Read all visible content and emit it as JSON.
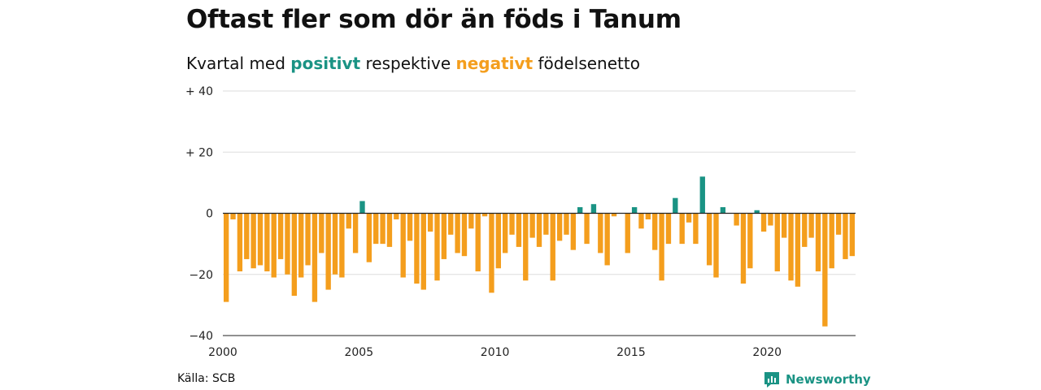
{
  "header": {
    "title": "Oftast fler som dör än föds i Tanum",
    "subtitle_pre": "Kvartal med",
    "subtitle_pos": "positivt",
    "subtitle_mid": "respektive",
    "subtitle_neg": "negativt",
    "subtitle_post": "födelsenetto"
  },
  "footer": {
    "source": "Källa: SCB",
    "brand": "Newsworthy",
    "brand_icon": "newsworthy-logo-icon"
  },
  "colors": {
    "positive": "#1a9384",
    "negative": "#f49e1d",
    "grid": "#dddddd",
    "zero_line": "#222222"
  },
  "chart_data": {
    "type": "bar",
    "title": "",
    "xlabel": "",
    "ylabel": "",
    "ylim": [
      -40,
      40
    ],
    "yticks": [
      40,
      20,
      0,
      -20,
      -40
    ],
    "ytick_labels": [
      "+ 40",
      "+ 20",
      "0",
      "−20",
      "−40"
    ],
    "xlim": [
      2000,
      2023.25
    ],
    "xticks": [
      2000,
      2005,
      2010,
      2015,
      2020
    ],
    "xtick_labels": [
      "2000",
      "2005",
      "2010",
      "2015",
      "2020"
    ],
    "grid": true,
    "quarter_start": "2000 Q1",
    "categories": [
      "2000 Q1",
      "2000 Q2",
      "2000 Q3",
      "2000 Q4",
      "2001 Q1",
      "2001 Q2",
      "2001 Q3",
      "2001 Q4",
      "2002 Q1",
      "2002 Q2",
      "2002 Q3",
      "2002 Q4",
      "2003 Q1",
      "2003 Q2",
      "2003 Q3",
      "2003 Q4",
      "2004 Q1",
      "2004 Q2",
      "2004 Q3",
      "2004 Q4",
      "2005 Q1",
      "2005 Q2",
      "2005 Q3",
      "2005 Q4",
      "2006 Q1",
      "2006 Q2",
      "2006 Q3",
      "2006 Q4",
      "2007 Q1",
      "2007 Q2",
      "2007 Q3",
      "2007 Q4",
      "2008 Q1",
      "2008 Q2",
      "2008 Q3",
      "2008 Q4",
      "2009 Q1",
      "2009 Q2",
      "2009 Q3",
      "2009 Q4",
      "2010 Q1",
      "2010 Q2",
      "2010 Q3",
      "2010 Q4",
      "2011 Q1",
      "2011 Q2",
      "2011 Q3",
      "2011 Q4",
      "2012 Q1",
      "2012 Q2",
      "2012 Q3",
      "2012 Q4",
      "2013 Q1",
      "2013 Q2",
      "2013 Q3",
      "2013 Q4",
      "2014 Q1",
      "2014 Q2",
      "2014 Q3",
      "2014 Q4",
      "2015 Q1",
      "2015 Q2",
      "2015 Q3",
      "2015 Q4",
      "2016 Q1",
      "2016 Q2",
      "2016 Q3",
      "2016 Q4",
      "2017 Q1",
      "2017 Q2",
      "2017 Q3",
      "2017 Q4",
      "2018 Q1",
      "2018 Q2",
      "2018 Q3",
      "2018 Q4",
      "2019 Q1",
      "2019 Q2",
      "2019 Q3",
      "2019 Q4",
      "2020 Q1",
      "2020 Q2",
      "2020 Q3",
      "2020 Q4",
      "2021 Q1",
      "2021 Q2",
      "2021 Q3",
      "2021 Q4",
      "2022 Q1",
      "2022 Q2",
      "2022 Q3",
      "2022 Q4",
      "2023 Q1"
    ],
    "values": [
      -29,
      -2,
      -19,
      -15,
      -18,
      -17,
      -19,
      -21,
      -15,
      -20,
      -27,
      -21,
      -17,
      -29,
      -13,
      -25,
      -20,
      -21,
      -5,
      -13,
      4,
      -16,
      -10,
      -10,
      -11,
      -2,
      -21,
      -9,
      -23,
      -25,
      -6,
      -22,
      -15,
      -7,
      -13,
      -14,
      -5,
      -19,
      -1,
      -26,
      -18,
      -13,
      -7,
      -11,
      -22,
      -8,
      -11,
      -7,
      -22,
      -9,
      -7,
      -12,
      2,
      -10,
      3,
      -13,
      -17,
      -1,
      0,
      -13,
      2,
      -5,
      -2,
      -12,
      -22,
      -10,
      5,
      -10,
      -3,
      -10,
      12,
      -17,
      -21,
      2,
      0,
      -4,
      -23,
      -18,
      1,
      -6,
      -4,
      -19,
      -8,
      -22,
      -24,
      -11,
      -8,
      -19,
      -37,
      -18,
      -7,
      -15,
      -14
    ]
  }
}
